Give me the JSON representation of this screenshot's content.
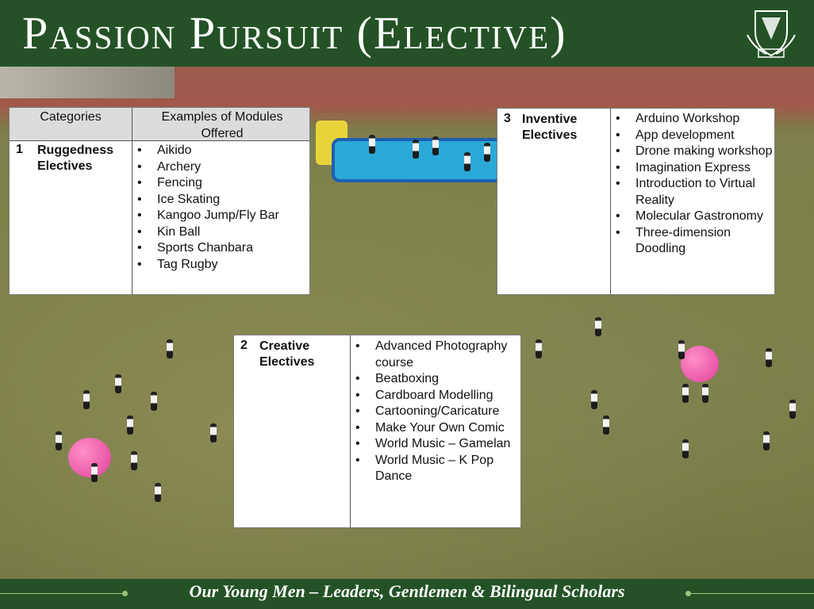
{
  "header": {
    "title": "Passion Pursuit (Elective)",
    "crest_icon": "school-crest-icon"
  },
  "table1": {
    "header_categories": "Categories",
    "header_modules": "Examples of Modules Offered",
    "number": "1",
    "category": "Ruggedness Electives",
    "modules": [
      "Aikido",
      "Archery",
      "Fencing",
      "Ice Skating",
      "Kangoo Jump/Fly Bar",
      "Kin Ball",
      "Sports Chanbara",
      "Tag Rugby"
    ]
  },
  "table2": {
    "number": "2",
    "category": "Creative Electives",
    "modules": [
      "Advanced Photography course",
      "Beatboxing",
      "Cardboard Modelling",
      "Cartooning/Caricature",
      "Make Your Own Comic",
      "World Music – Gamelan",
      "World Music – K Pop Dance"
    ]
  },
  "table3": {
    "number": "3",
    "category": "Inventive Electives",
    "modules": [
      "Arduino Workshop",
      "App development",
      "Drone making workshop",
      "Imagination Express",
      "Introduction to Virtual Reality",
      "Molecular Gastronomy",
      "Three-dimension Doodling"
    ]
  },
  "footer": {
    "motto": "Our Young Men – Leaders, Gentlemen & Bilingual Scholars"
  },
  "colors": {
    "header_green": "#245226",
    "footer_line": "#9ac27a",
    "ball_pink": "#e0409a"
  }
}
